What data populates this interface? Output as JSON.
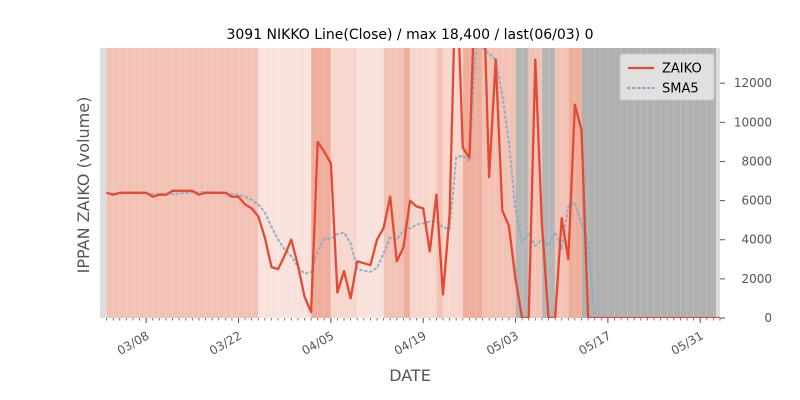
{
  "chart_data": {
    "type": "line",
    "title": "3091 NIKKO Line(Close) / max 18,400 / last(06/03) 0",
    "xlabel": "DATE",
    "ylabel": "IPPAN ZAIKO (volume)",
    "x_tick_labels": [
      "03/08",
      "03/22",
      "04/05",
      "04/19",
      "05/03",
      "05/17",
      "05/31"
    ],
    "x_tick_days": [
      8,
      22,
      36,
      50,
      64,
      78,
      92
    ],
    "x_range_days": [
      1,
      95
    ],
    "y_ticks": [
      0,
      2000,
      4000,
      6000,
      8000,
      10000,
      12000
    ],
    "ylim": [
      0,
      13800
    ],
    "legend_position": "top-right",
    "series": [
      {
        "name": "ZAIKO",
        "color": "#E24A33",
        "style": "solid",
        "x": [
          2,
          3,
          4,
          5,
          6,
          7,
          8,
          9,
          10,
          11,
          12,
          13,
          14,
          15,
          16,
          17,
          18,
          19,
          20,
          21,
          22,
          23,
          24,
          25,
          26,
          27,
          28,
          29,
          30,
          31,
          32,
          33,
          34,
          35,
          36,
          37,
          38,
          39,
          40,
          41,
          42,
          43,
          44,
          45,
          46,
          47,
          48,
          49,
          50,
          51,
          52,
          53,
          54,
          55,
          56,
          57,
          58,
          59,
          60,
          61,
          62,
          63,
          64,
          65,
          66,
          67,
          68,
          69,
          70,
          71,
          72,
          73,
          74,
          75,
          76,
          77,
          78,
          79,
          80,
          81,
          82,
          83,
          84,
          85,
          86,
          87,
          88,
          89,
          90,
          91,
          92,
          93,
          94,
          95
        ],
        "y": [
          6400,
          6300,
          6400,
          6400,
          6400,
          6400,
          6400,
          6200,
          6300,
          6300,
          6500,
          6500,
          6500,
          6500,
          6300,
          6400,
          6400,
          6400,
          6400,
          6200,
          6200,
          5800,
          5600,
          5200,
          4100,
          2600,
          2500,
          3200,
          4000,
          2700,
          1100,
          300,
          9000,
          8500,
          7900,
          1300,
          2400,
          1000,
          2900,
          2800,
          2700,
          4000,
          4600,
          6200,
          2900,
          3600,
          6000,
          5700,
          5600,
          3400,
          6300,
          1200,
          5300,
          18400,
          8700,
          8200,
          18400,
          18400,
          7200,
          13200,
          5500,
          4700,
          2000,
          0,
          0,
          13200,
          4800,
          0,
          0,
          5100,
          3000,
          10900,
          9600,
          0,
          0,
          0,
          0,
          0,
          0,
          0,
          0,
          0,
          0,
          0,
          0,
          0,
          0,
          0,
          0,
          0,
          0,
          0,
          0,
          0
        ]
      },
      {
        "name": "SMA5",
        "color": "#88AAC4",
        "style": "dotted",
        "x": [
          2,
          3,
          4,
          5,
          6,
          7,
          8,
          9,
          10,
          11,
          12,
          13,
          14,
          15,
          16,
          17,
          18,
          19,
          20,
          21,
          22,
          23,
          24,
          25,
          26,
          27,
          28,
          29,
          30,
          31,
          32,
          33,
          34,
          35,
          36,
          37,
          38,
          39,
          40,
          41,
          42,
          43,
          44,
          45,
          46,
          47,
          48,
          49,
          50,
          51,
          52,
          53,
          54,
          55,
          56,
          57,
          58,
          59,
          60,
          61,
          62,
          63,
          64,
          65,
          66,
          67,
          68,
          69,
          70,
          71,
          72,
          73,
          74,
          75,
          76,
          77,
          78,
          79,
          80,
          81,
          82,
          83,
          84,
          85,
          86,
          87,
          88,
          89,
          90,
          91,
          92,
          93,
          94,
          95
        ],
        "y": [
          6400,
          6350,
          6370,
          6380,
          6380,
          6380,
          6380,
          6340,
          6340,
          6320,
          6340,
          6360,
          6400,
          6420,
          6420,
          6440,
          6420,
          6400,
          6400,
          6340,
          6300,
          6200,
          6040,
          5800,
          5380,
          4660,
          4000,
          3500,
          3160,
          2600,
          2260,
          2340,
          3420,
          4040,
          4040,
          4300,
          4360,
          3820,
          2500,
          2420,
          2360,
          2560,
          3300,
          4100,
          4000,
          4480,
          4580,
          4780,
          4840,
          4920,
          4940,
          4640,
          4540,
          8200,
          8300,
          8000,
          13900,
          13800,
          13500,
          13200,
          11400,
          9000,
          5500,
          3900,
          4300,
          3700,
          4000,
          3700,
          4400,
          3500,
          5700,
          5900,
          4800,
          3900,
          0,
          0,
          0,
          0,
          0,
          0,
          0,
          0,
          0,
          0,
          0,
          0,
          0,
          0,
          0,
          0,
          0,
          0,
          0,
          0
        ]
      }
    ],
    "background_bands": [
      {
        "start": 1,
        "end": 2,
        "color": "#dddddd"
      },
      {
        "start": 2,
        "end": 25,
        "color": "#f2c2b5"
      },
      {
        "start": 25,
        "end": 33,
        "color": "#f9e2dc"
      },
      {
        "start": 33,
        "end": 36,
        "color": "#efae9c"
      },
      {
        "start": 36,
        "end": 40,
        "color": "#f7d6cd"
      },
      {
        "start": 40,
        "end": 44,
        "color": "#f9e2dc"
      },
      {
        "start": 44,
        "end": 47,
        "color": "#f2c2b5"
      },
      {
        "start": 47,
        "end": 48,
        "color": "#efae9c"
      },
      {
        "start": 48,
        "end": 52,
        "color": "#f7d6cd"
      },
      {
        "start": 52,
        "end": 53,
        "color": "#f2c2b5"
      },
      {
        "start": 53,
        "end": 56,
        "color": "#f7d6cd"
      },
      {
        "start": 56,
        "end": 59,
        "color": "#efae9c"
      },
      {
        "start": 59,
        "end": 64,
        "color": "#f2c2b5"
      },
      {
        "start": 64,
        "end": 66,
        "color": "#b5b5b5"
      },
      {
        "start": 66,
        "end": 68,
        "color": "#f2c2b5"
      },
      {
        "start": 68,
        "end": 70,
        "color": "#b5b5b5"
      },
      {
        "start": 70,
        "end": 72,
        "color": "#f2c2b5"
      },
      {
        "start": 72,
        "end": 74,
        "color": "#efae9c"
      },
      {
        "start": 74,
        "end": 95,
        "color": "#b0b0b0"
      }
    ]
  }
}
